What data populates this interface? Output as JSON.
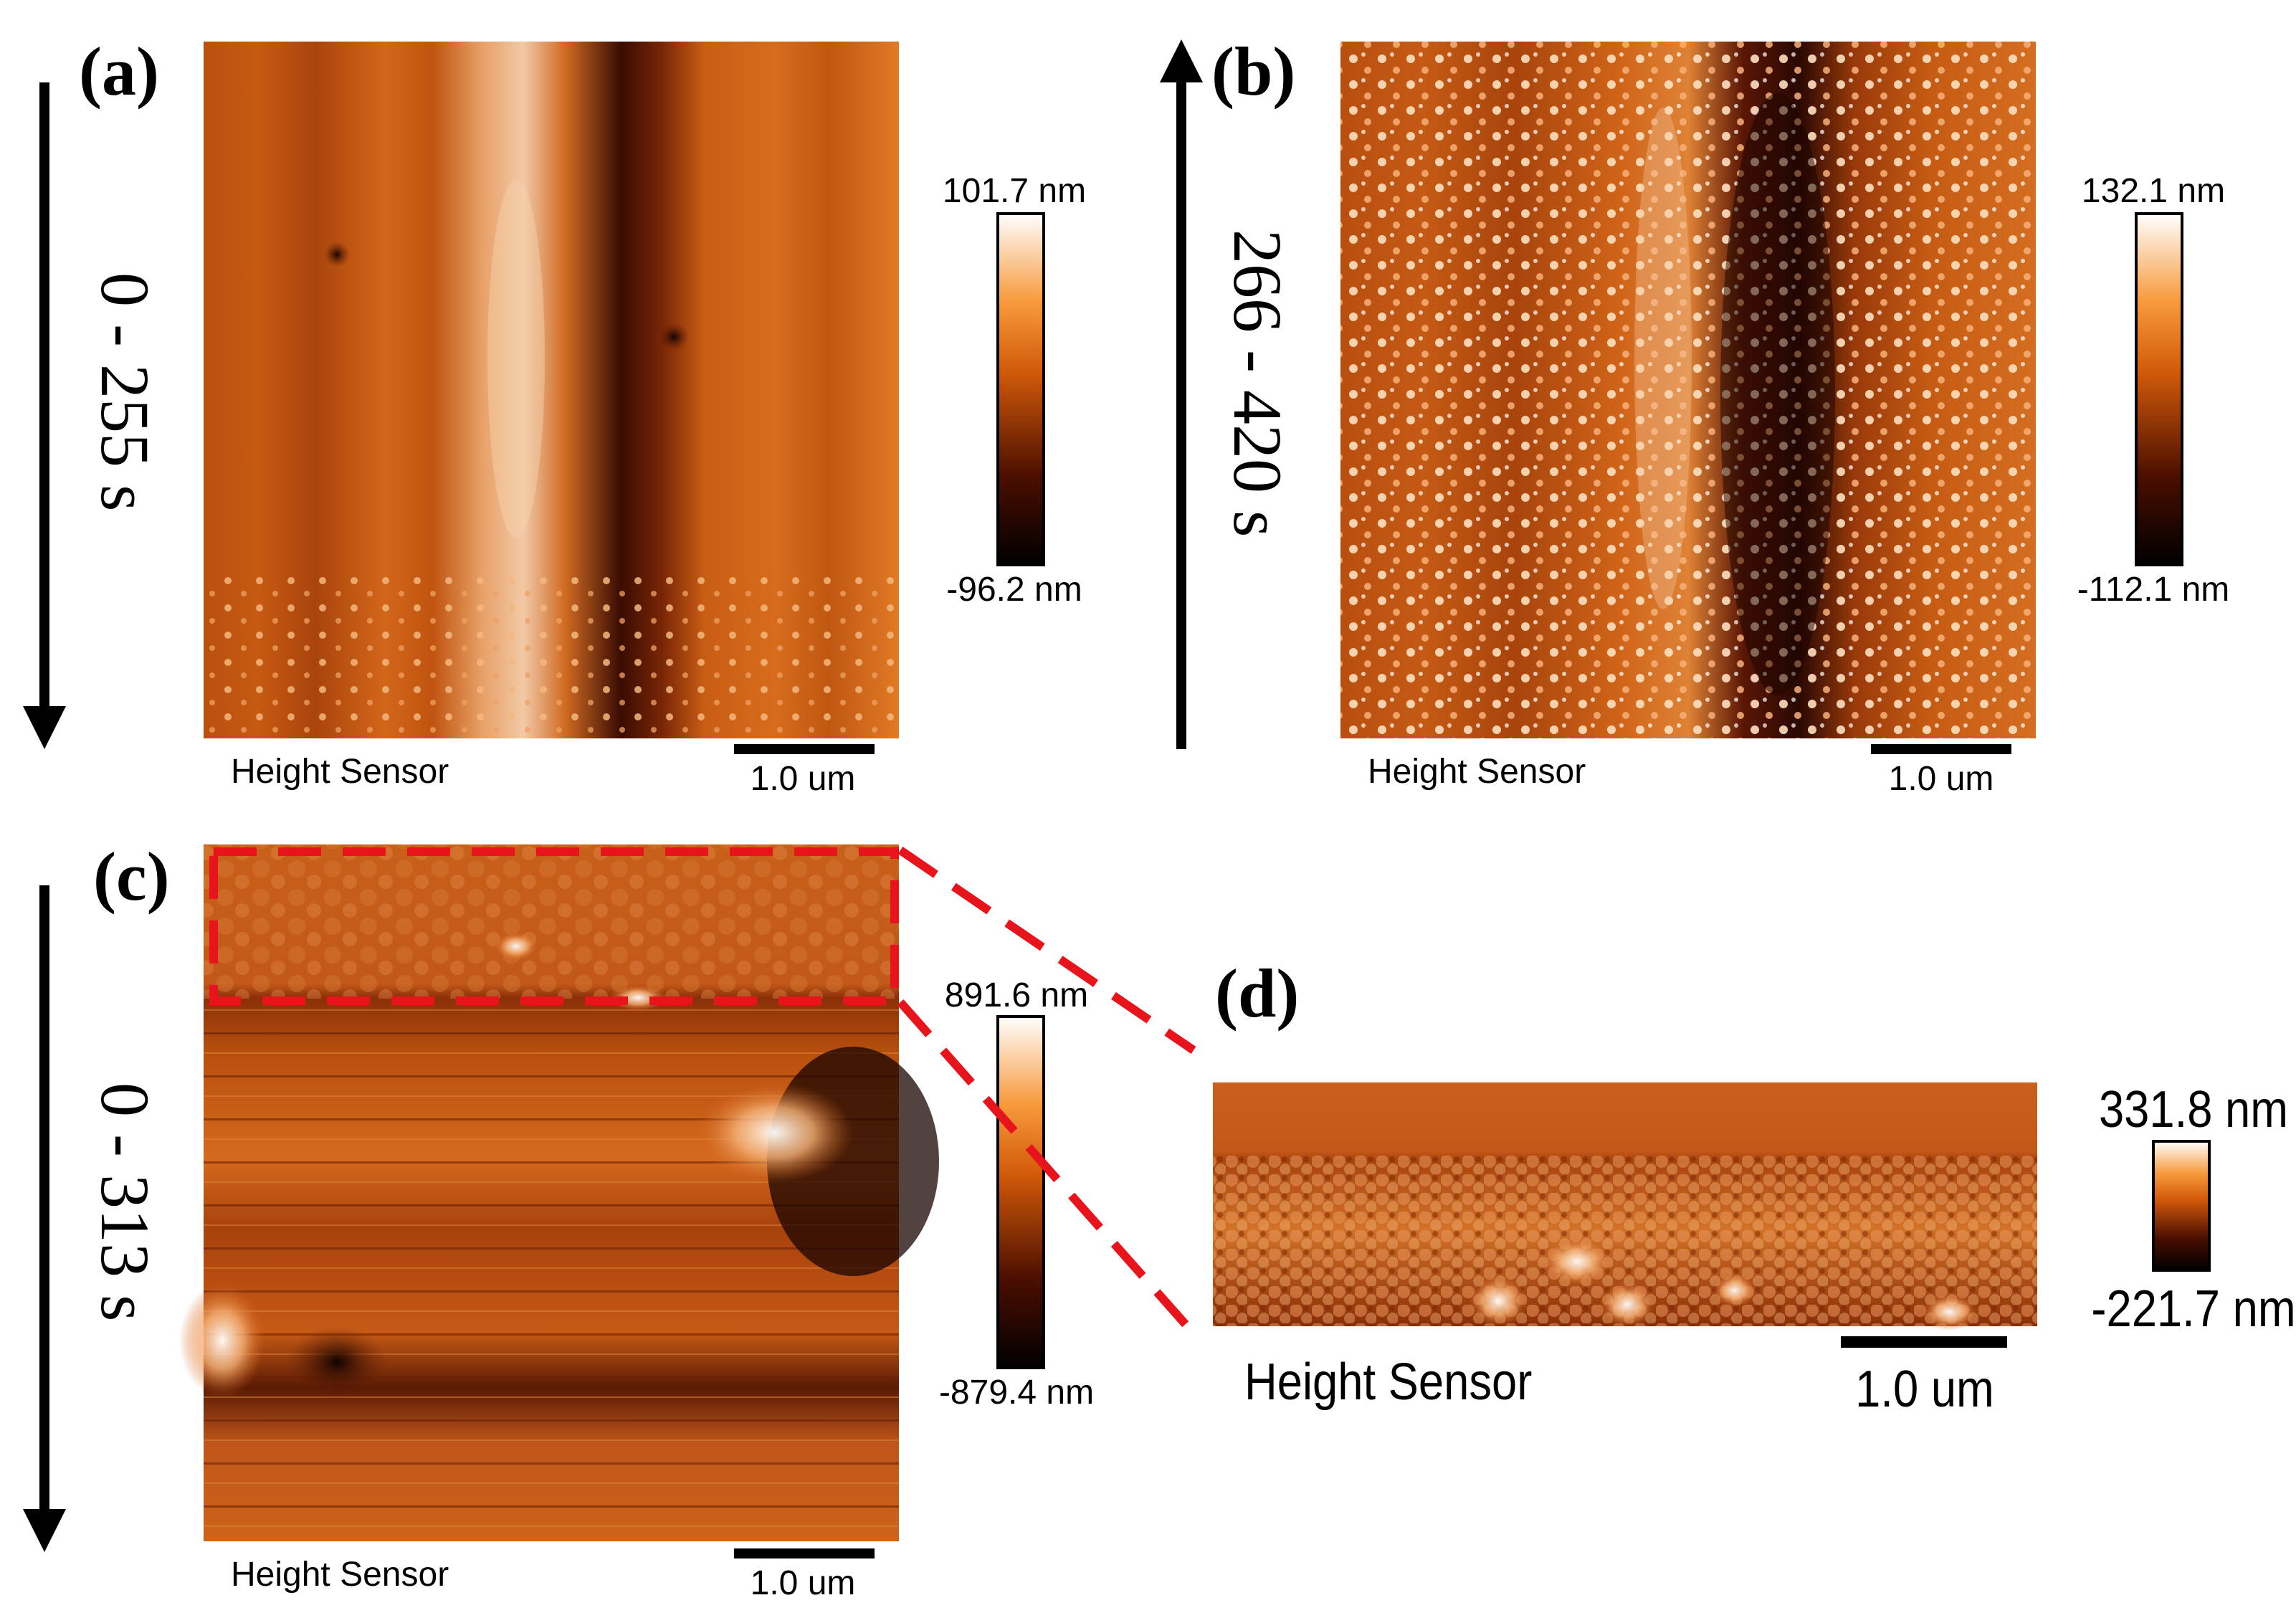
{
  "panels": [
    {
      "id": "a",
      "label": "(a)",
      "time": "0 - 255 s",
      "arrow": "down",
      "caption": "Height Sensor",
      "scale": "1.0 um",
      "cb_max": "101.7 nm",
      "cb_min": "-96.2 nm"
    },
    {
      "id": "b",
      "label": "(b)",
      "time": "266 - 420 s",
      "arrow": "up",
      "caption": "Height Sensor",
      "scale": "1.0 um",
      "cb_max": "132.1 nm",
      "cb_min": "-112.1 nm"
    },
    {
      "id": "c",
      "label": "(c)",
      "time": "0 - 313 s",
      "arrow": "down",
      "caption": "Height Sensor",
      "scale": "1.0 um",
      "cb_max": "891.6 nm",
      "cb_min": "-879.4 nm"
    },
    {
      "id": "d",
      "label": "(d)",
      "caption": "Height Sensor",
      "scale": "1.0 um",
      "cb_max": "331.8 nm",
      "cb_min": "-221.7 nm"
    }
  ],
  "colors": {
    "afm_dark": "#0d0000",
    "afm_mid": "#c84c0a",
    "afm_light": "#ffffff",
    "inset_outline": "#e8141c"
  }
}
